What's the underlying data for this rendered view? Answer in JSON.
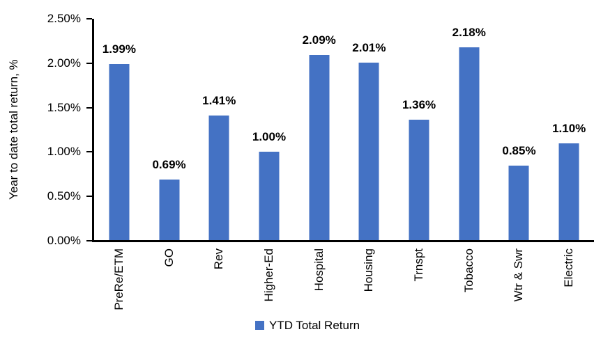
{
  "chart_data": {
    "type": "bar",
    "title": "",
    "xlabel": "",
    "ylabel": "Year to date total return, %",
    "categories": [
      "PreRe/ETM",
      "GO",
      "Rev",
      "Higher-Ed",
      "Hospital",
      "Housing",
      "Trnspt",
      "Tobacco",
      "Wtr & Swr",
      "Electric"
    ],
    "series": [
      {
        "name": "YTD Total Return",
        "color": "#4472C4",
        "values": [
          1.99,
          0.69,
          1.41,
          1.0,
          2.09,
          2.01,
          1.36,
          2.18,
          0.85,
          1.1
        ]
      }
    ],
    "data_labels": [
      "1.99%",
      "0.69%",
      "1.41%",
      "1.00%",
      "2.09%",
      "2.01%",
      "1.36%",
      "2.18%",
      "0.85%",
      "1.10%"
    ],
    "ylim": [
      0,
      2.5
    ],
    "ytick_labels": [
      "0.00%",
      "0.50%",
      "1.00%",
      "1.50%",
      "2.00%",
      "2.50%"
    ],
    "grid": false,
    "legend_position": "bottom"
  },
  "legend": {
    "label": "YTD Total Return",
    "swatch_color": "#4472C4"
  },
  "colors": {
    "bar": "#4472C4",
    "axis": "#000000",
    "text": "#000000",
    "background": "#FFFFFF"
  }
}
